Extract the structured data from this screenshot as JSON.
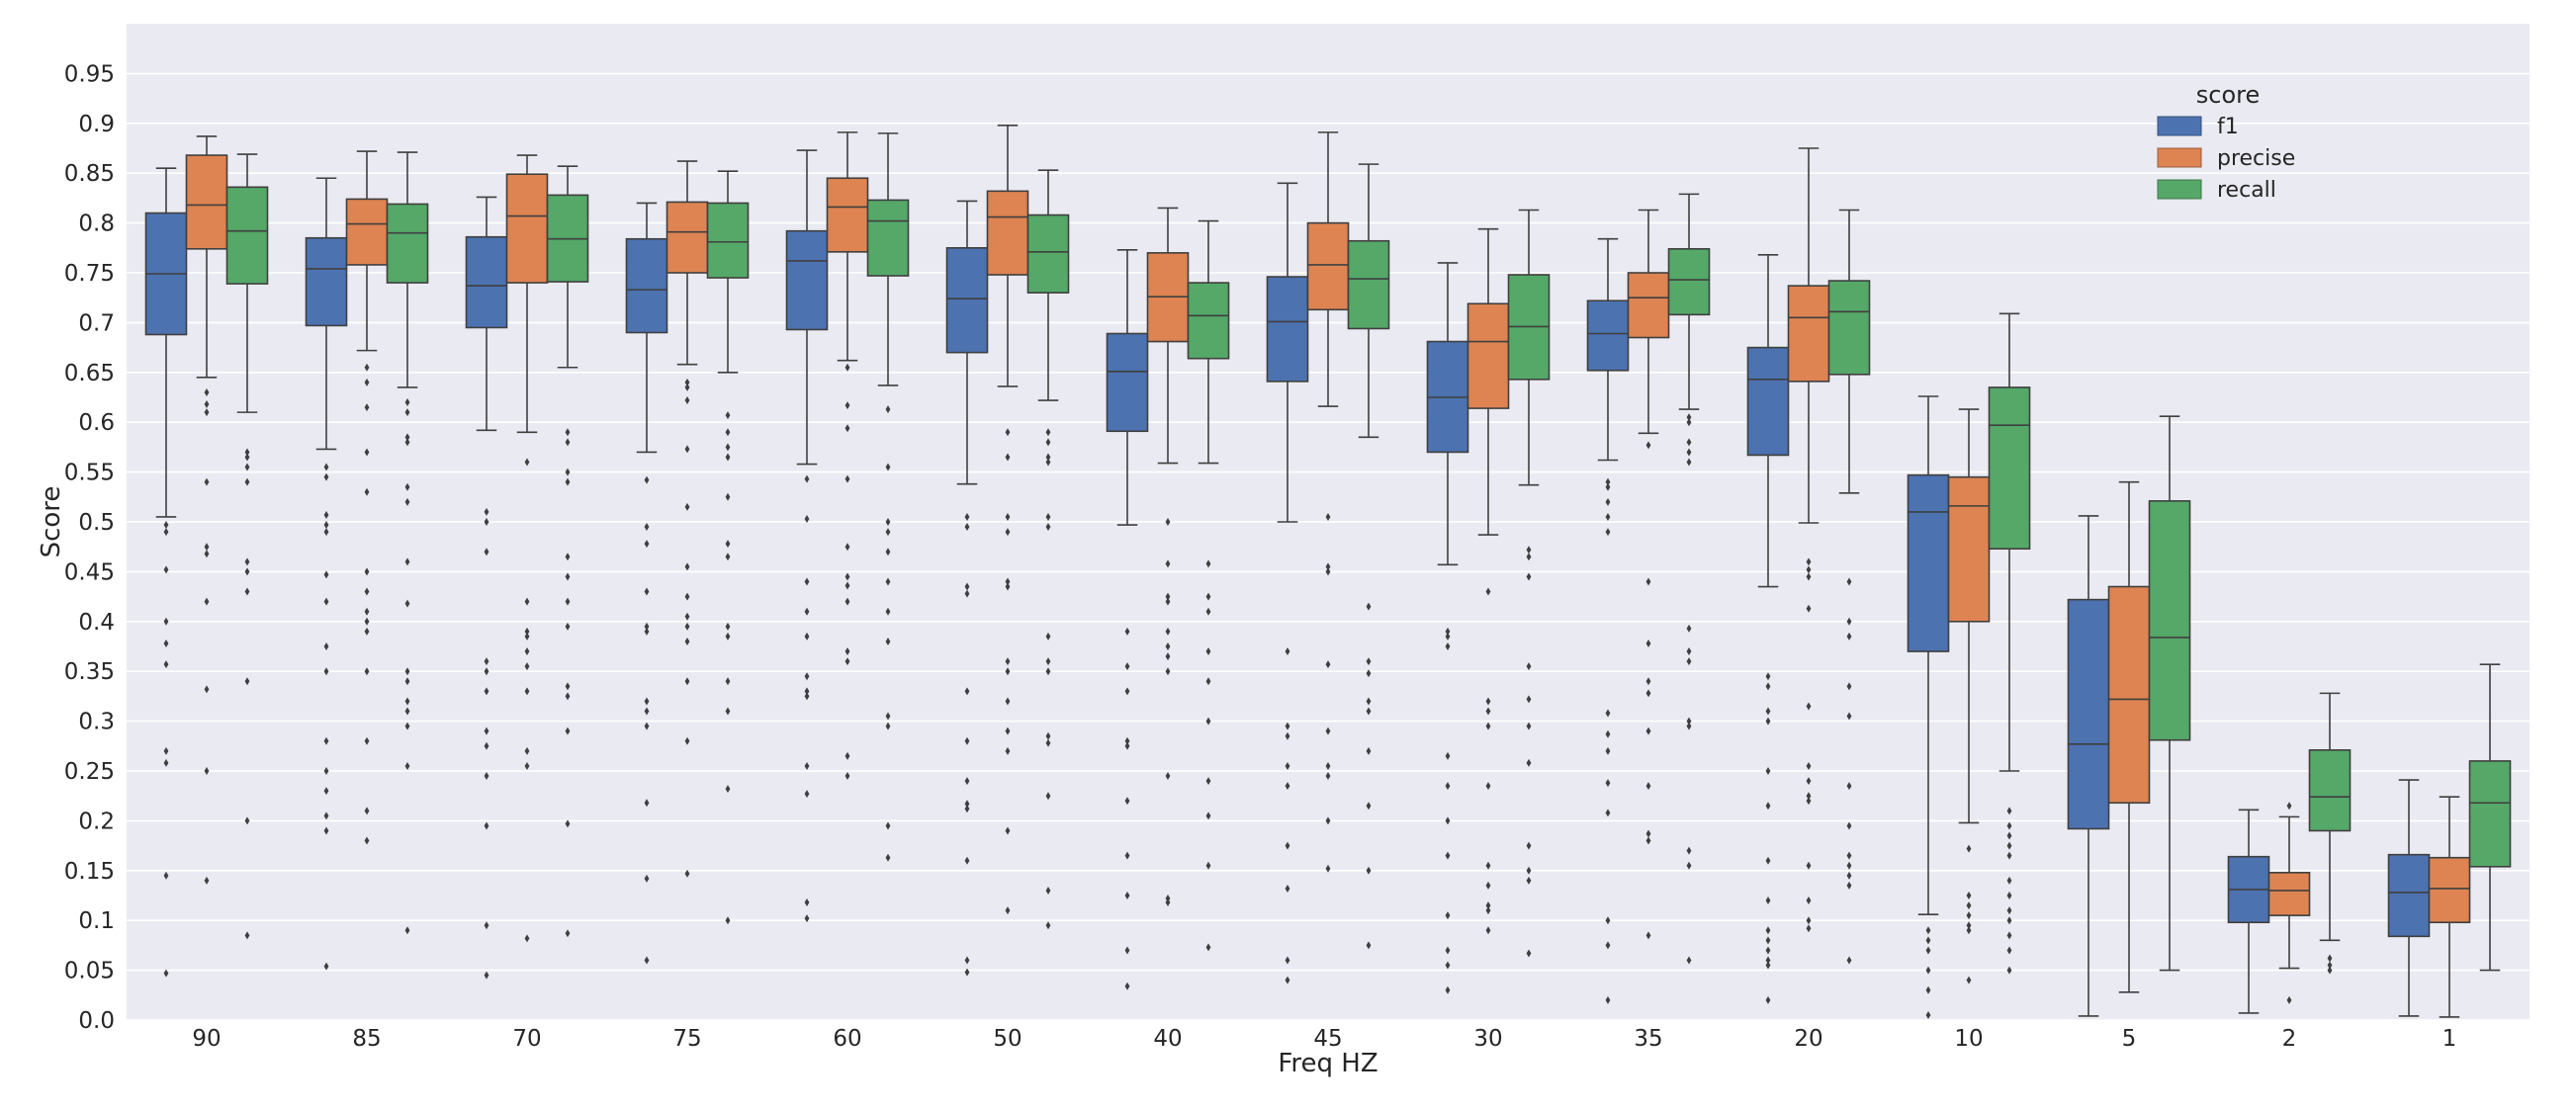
{
  "chart_data": {
    "type": "boxplot",
    "title": "",
    "xlabel": "Freq HZ",
    "ylabel": "Score",
    "ylim": [
      0.0,
      1.0
    ],
    "yticks": [
      "0.0",
      "0.05",
      "0.1",
      "0.15",
      "0.2",
      "0.25",
      "0.3",
      "0.35",
      "0.4",
      "0.45",
      "0.5",
      "0.55",
      "0.6",
      "0.65",
      "0.7",
      "0.75",
      "0.8",
      "0.85",
      "0.9",
      "0.95"
    ],
    "grid": true,
    "legend": {
      "title": "score",
      "position": "top-right"
    },
    "categories": [
      "90",
      "85",
      "70",
      "75",
      "60",
      "50",
      "40",
      "45",
      "30",
      "35",
      "20",
      "10",
      "5",
      "2",
      "1"
    ],
    "series": [
      {
        "name": "f1",
        "color": "#4c72b0",
        "boxes": [
          {
            "whislo": 0.505,
            "q1": 0.688,
            "med": 0.749,
            "q3": 0.81,
            "whishi": 0.855,
            "fliers": [
              0.497,
              0.49,
              0.452,
              0.4,
              0.378,
              0.357,
              0.27,
              0.258,
              0.145,
              0.047
            ]
          },
          {
            "whislo": 0.573,
            "q1": 0.697,
            "med": 0.754,
            "q3": 0.785,
            "whishi": 0.845,
            "fliers": [
              0.555,
              0.545,
              0.507,
              0.497,
              0.49,
              0.447,
              0.42,
              0.375,
              0.35,
              0.28,
              0.25,
              0.23,
              0.205,
              0.19,
              0.054
            ]
          },
          {
            "whislo": 0.592,
            "q1": 0.695,
            "med": 0.737,
            "q3": 0.786,
            "whishi": 0.826,
            "fliers": [
              0.51,
              0.5,
              0.47,
              0.36,
              0.35,
              0.33,
              0.29,
              0.275,
              0.245,
              0.195,
              0.095,
              0.045
            ]
          },
          {
            "whislo": 0.57,
            "q1": 0.69,
            "med": 0.733,
            "q3": 0.784,
            "whishi": 0.82,
            "fliers": [
              0.542,
              0.495,
              0.478,
              0.43,
              0.395,
              0.39,
              0.32,
              0.31,
              0.295,
              0.218,
              0.142,
              0.06
            ]
          },
          {
            "whislo": 0.558,
            "q1": 0.693,
            "med": 0.762,
            "q3": 0.792,
            "whishi": 0.873,
            "fliers": [
              0.543,
              0.503,
              0.44,
              0.41,
              0.385,
              0.345,
              0.33,
              0.325,
              0.255,
              0.227,
              0.118,
              0.102
            ]
          },
          {
            "whislo": 0.538,
            "q1": 0.67,
            "med": 0.724,
            "q3": 0.775,
            "whishi": 0.822,
            "fliers": [
              0.505,
              0.495,
              0.435,
              0.428,
              0.33,
              0.28,
              0.24,
              0.217,
              0.212,
              0.16,
              0.06,
              0.048
            ]
          },
          {
            "whislo": 0.497,
            "q1": 0.591,
            "med": 0.651,
            "q3": 0.689,
            "whishi": 0.773,
            "fliers": [
              0.39,
              0.355,
              0.33,
              0.28,
              0.275,
              0.22,
              0.165,
              0.125,
              0.07,
              0.034
            ]
          },
          {
            "whislo": 0.5,
            "q1": 0.641,
            "med": 0.701,
            "q3": 0.746,
            "whishi": 0.84,
            "fliers": [
              0.37,
              0.295,
              0.285,
              0.255,
              0.235,
              0.175,
              0.132,
              0.06,
              0.04
            ]
          },
          {
            "whislo": 0.457,
            "q1": 0.57,
            "med": 0.625,
            "q3": 0.681,
            "whishi": 0.76,
            "fliers": [
              0.39,
              0.385,
              0.375,
              0.265,
              0.235,
              0.2,
              0.165,
              0.105,
              0.07,
              0.055,
              0.03
            ]
          },
          {
            "whislo": 0.562,
            "q1": 0.652,
            "med": 0.689,
            "q3": 0.722,
            "whishi": 0.784,
            "fliers": [
              0.54,
              0.535,
              0.52,
              0.505,
              0.49,
              0.308,
              0.287,
              0.27,
              0.238,
              0.208,
              0.1,
              0.075,
              0.02
            ]
          },
          {
            "whislo": 0.435,
            "q1": 0.567,
            "med": 0.643,
            "q3": 0.675,
            "whishi": 0.768,
            "fliers": [
              0.345,
              0.335,
              0.31,
              0.3,
              0.25,
              0.215,
              0.16,
              0.12,
              0.09,
              0.08,
              0.07,
              0.06,
              0.055,
              0.02
            ]
          },
          {
            "whislo": 0.106,
            "q1": 0.37,
            "med": 0.51,
            "q3": 0.547,
            "whishi": 0.626,
            "fliers": [
              0.09,
              0.08,
              0.07,
              0.05,
              0.03,
              0.005
            ]
          },
          {
            "whislo": 0.004,
            "q1": 0.192,
            "med": 0.277,
            "q3": 0.422,
            "whishi": 0.506,
            "fliers": []
          },
          {
            "whislo": 0.007,
            "q1": 0.098,
            "med": 0.131,
            "q3": 0.164,
            "whishi": 0.211,
            "fliers": []
          },
          {
            "whislo": 0.004,
            "q1": 0.084,
            "med": 0.128,
            "q3": 0.166,
            "whishi": 0.241,
            "fliers": []
          }
        ]
      },
      {
        "name": "precise",
        "color": "#dd8452",
        "boxes": [
          {
            "whislo": 0.645,
            "q1": 0.774,
            "med": 0.818,
            "q3": 0.868,
            "whishi": 0.887,
            "fliers": [
              0.63,
              0.618,
              0.61,
              0.54,
              0.475,
              0.468,
              0.42,
              0.332,
              0.25,
              0.14
            ]
          },
          {
            "whislo": 0.672,
            "q1": 0.758,
            "med": 0.799,
            "q3": 0.824,
            "whishi": 0.872,
            "fliers": [
              0.655,
              0.64,
              0.615,
              0.57,
              0.53,
              0.45,
              0.43,
              0.41,
              0.4,
              0.39,
              0.35,
              0.28,
              0.21,
              0.18
            ]
          },
          {
            "whislo": 0.59,
            "q1": 0.74,
            "med": 0.807,
            "q3": 0.849,
            "whishi": 0.868,
            "fliers": [
              0.56,
              0.42,
              0.39,
              0.385,
              0.37,
              0.355,
              0.33,
              0.27,
              0.255,
              0.082
            ]
          },
          {
            "whislo": 0.658,
            "q1": 0.75,
            "med": 0.791,
            "q3": 0.821,
            "whishi": 0.862,
            "fliers": [
              0.64,
              0.635,
              0.622,
              0.573,
              0.515,
              0.455,
              0.425,
              0.405,
              0.395,
              0.38,
              0.34,
              0.28,
              0.147
            ]
          },
          {
            "whislo": 0.662,
            "q1": 0.771,
            "med": 0.816,
            "q3": 0.845,
            "whishi": 0.891,
            "fliers": [
              0.655,
              0.617,
              0.594,
              0.543,
              0.475,
              0.445,
              0.436,
              0.42,
              0.37,
              0.36,
              0.265,
              0.245
            ]
          },
          {
            "whislo": 0.636,
            "q1": 0.748,
            "med": 0.806,
            "q3": 0.832,
            "whishi": 0.898,
            "fliers": [
              0.59,
              0.565,
              0.505,
              0.49,
              0.44,
              0.435,
              0.36,
              0.35,
              0.32,
              0.29,
              0.27,
              0.19,
              0.11
            ]
          },
          {
            "whislo": 0.559,
            "q1": 0.681,
            "med": 0.726,
            "q3": 0.77,
            "whishi": 0.815,
            "fliers": [
              0.5,
              0.458,
              0.425,
              0.42,
              0.39,
              0.375,
              0.365,
              0.35,
              0.245,
              0.122,
              0.118
            ]
          },
          {
            "whislo": 0.616,
            "q1": 0.713,
            "med": 0.758,
            "q3": 0.8,
            "whishi": 0.891,
            "fliers": [
              0.505,
              0.455,
              0.45,
              0.357,
              0.29,
              0.255,
              0.245,
              0.2,
              0.152
            ]
          },
          {
            "whislo": 0.487,
            "q1": 0.614,
            "med": 0.681,
            "q3": 0.719,
            "whishi": 0.794,
            "fliers": [
              0.43,
              0.32,
              0.31,
              0.295,
              0.235,
              0.155,
              0.135,
              0.115,
              0.11,
              0.09
            ]
          },
          {
            "whislo": 0.589,
            "q1": 0.685,
            "med": 0.725,
            "q3": 0.75,
            "whishi": 0.813,
            "fliers": [
              0.577,
              0.44,
              0.378,
              0.34,
              0.328,
              0.29,
              0.235,
              0.187,
              0.18,
              0.085
            ]
          },
          {
            "whislo": 0.499,
            "q1": 0.641,
            "med": 0.705,
            "q3": 0.737,
            "whishi": 0.875,
            "fliers": [
              0.46,
              0.452,
              0.445,
              0.413,
              0.315,
              0.255,
              0.24,
              0.225,
              0.22,
              0.155,
              0.12,
              0.1,
              0.092
            ]
          },
          {
            "whislo": 0.198,
            "q1": 0.4,
            "med": 0.516,
            "q3": 0.545,
            "whishi": 0.613,
            "fliers": [
              0.172,
              0.125,
              0.115,
              0.105,
              0.095,
              0.09,
              0.04
            ]
          },
          {
            "whislo": 0.028,
            "q1": 0.218,
            "med": 0.322,
            "q3": 0.435,
            "whishi": 0.54,
            "fliers": []
          },
          {
            "whislo": 0.052,
            "q1": 0.105,
            "med": 0.13,
            "q3": 0.148,
            "whishi": 0.204,
            "fliers": [
              0.215,
              0.02
            ]
          },
          {
            "whislo": 0.003,
            "q1": 0.098,
            "med": 0.132,
            "q3": 0.163,
            "whishi": 0.224,
            "fliers": []
          }
        ]
      },
      {
        "name": "recall",
        "color": "#55a868",
        "boxes": [
          {
            "whislo": 0.61,
            "q1": 0.739,
            "med": 0.792,
            "q3": 0.836,
            "whishi": 0.869,
            "fliers": [
              0.57,
              0.565,
              0.555,
              0.54,
              0.46,
              0.45,
              0.43,
              0.34,
              0.2,
              0.085
            ]
          },
          {
            "whislo": 0.635,
            "q1": 0.74,
            "med": 0.79,
            "q3": 0.819,
            "whishi": 0.871,
            "fliers": [
              0.62,
              0.61,
              0.585,
              0.58,
              0.535,
              0.52,
              0.46,
              0.418,
              0.35,
              0.34,
              0.32,
              0.31,
              0.295,
              0.255,
              0.09
            ]
          },
          {
            "whislo": 0.655,
            "q1": 0.741,
            "med": 0.784,
            "q3": 0.828,
            "whishi": 0.857,
            "fliers": [
              0.59,
              0.58,
              0.55,
              0.54,
              0.465,
              0.445,
              0.42,
              0.395,
              0.335,
              0.325,
              0.29,
              0.197,
              0.087
            ]
          },
          {
            "whislo": 0.65,
            "q1": 0.745,
            "med": 0.781,
            "q3": 0.82,
            "whishi": 0.852,
            "fliers": [
              0.607,
              0.59,
              0.575,
              0.565,
              0.525,
              0.478,
              0.465,
              0.395,
              0.385,
              0.34,
              0.31,
              0.232,
              0.1
            ]
          },
          {
            "whislo": 0.637,
            "q1": 0.747,
            "med": 0.802,
            "q3": 0.823,
            "whishi": 0.89,
            "fliers": [
              0.613,
              0.555,
              0.5,
              0.49,
              0.47,
              0.44,
              0.41,
              0.38,
              0.305,
              0.295,
              0.195,
              0.163
            ]
          },
          {
            "whislo": 0.622,
            "q1": 0.73,
            "med": 0.771,
            "q3": 0.808,
            "whishi": 0.853,
            "fliers": [
              0.59,
              0.58,
              0.565,
              0.56,
              0.505,
              0.495,
              0.385,
              0.36,
              0.35,
              0.285,
              0.278,
              0.225,
              0.13,
              0.095
            ]
          },
          {
            "whislo": 0.559,
            "q1": 0.664,
            "med": 0.707,
            "q3": 0.74,
            "whishi": 0.802,
            "fliers": [
              0.458,
              0.425,
              0.41,
              0.37,
              0.34,
              0.3,
              0.24,
              0.205,
              0.155,
              0.073
            ]
          },
          {
            "whislo": 0.585,
            "q1": 0.694,
            "med": 0.744,
            "q3": 0.782,
            "whishi": 0.859,
            "fliers": [
              0.415,
              0.36,
              0.348,
              0.32,
              0.31,
              0.27,
              0.215,
              0.15,
              0.075
            ]
          },
          {
            "whislo": 0.537,
            "q1": 0.643,
            "med": 0.696,
            "q3": 0.748,
            "whishi": 0.813,
            "fliers": [
              0.472,
              0.465,
              0.445,
              0.355,
              0.322,
              0.295,
              0.258,
              0.175,
              0.15,
              0.14,
              0.067
            ]
          },
          {
            "whislo": 0.613,
            "q1": 0.708,
            "med": 0.743,
            "q3": 0.774,
            "whishi": 0.829,
            "fliers": [
              0.605,
              0.6,
              0.58,
              0.57,
              0.56,
              0.393,
              0.37,
              0.36,
              0.3,
              0.295,
              0.17,
              0.155,
              0.06
            ]
          },
          {
            "whislo": 0.529,
            "q1": 0.648,
            "med": 0.711,
            "q3": 0.742,
            "whishi": 0.813,
            "fliers": [
              0.44,
              0.4,
              0.385,
              0.335,
              0.305,
              0.235,
              0.195,
              0.165,
              0.155,
              0.145,
              0.135,
              0.06
            ]
          },
          {
            "whislo": 0.25,
            "q1": 0.473,
            "med": 0.597,
            "q3": 0.635,
            "whishi": 0.709,
            "fliers": [
              0.21,
              0.195,
              0.185,
              0.175,
              0.165,
              0.14,
              0.125,
              0.11,
              0.1,
              0.085,
              0.07,
              0.05
            ]
          },
          {
            "whislo": 0.05,
            "q1": 0.281,
            "med": 0.384,
            "q3": 0.521,
            "whishi": 0.606,
            "fliers": []
          },
          {
            "whislo": 0.08,
            "q1": 0.19,
            "med": 0.224,
            "q3": 0.271,
            "whishi": 0.328,
            "fliers": [
              0.062,
              0.055,
              0.05
            ]
          },
          {
            "whislo": 0.05,
            "q1": 0.154,
            "med": 0.218,
            "q3": 0.26,
            "whishi": 0.357,
            "fliers": []
          }
        ]
      }
    ]
  }
}
